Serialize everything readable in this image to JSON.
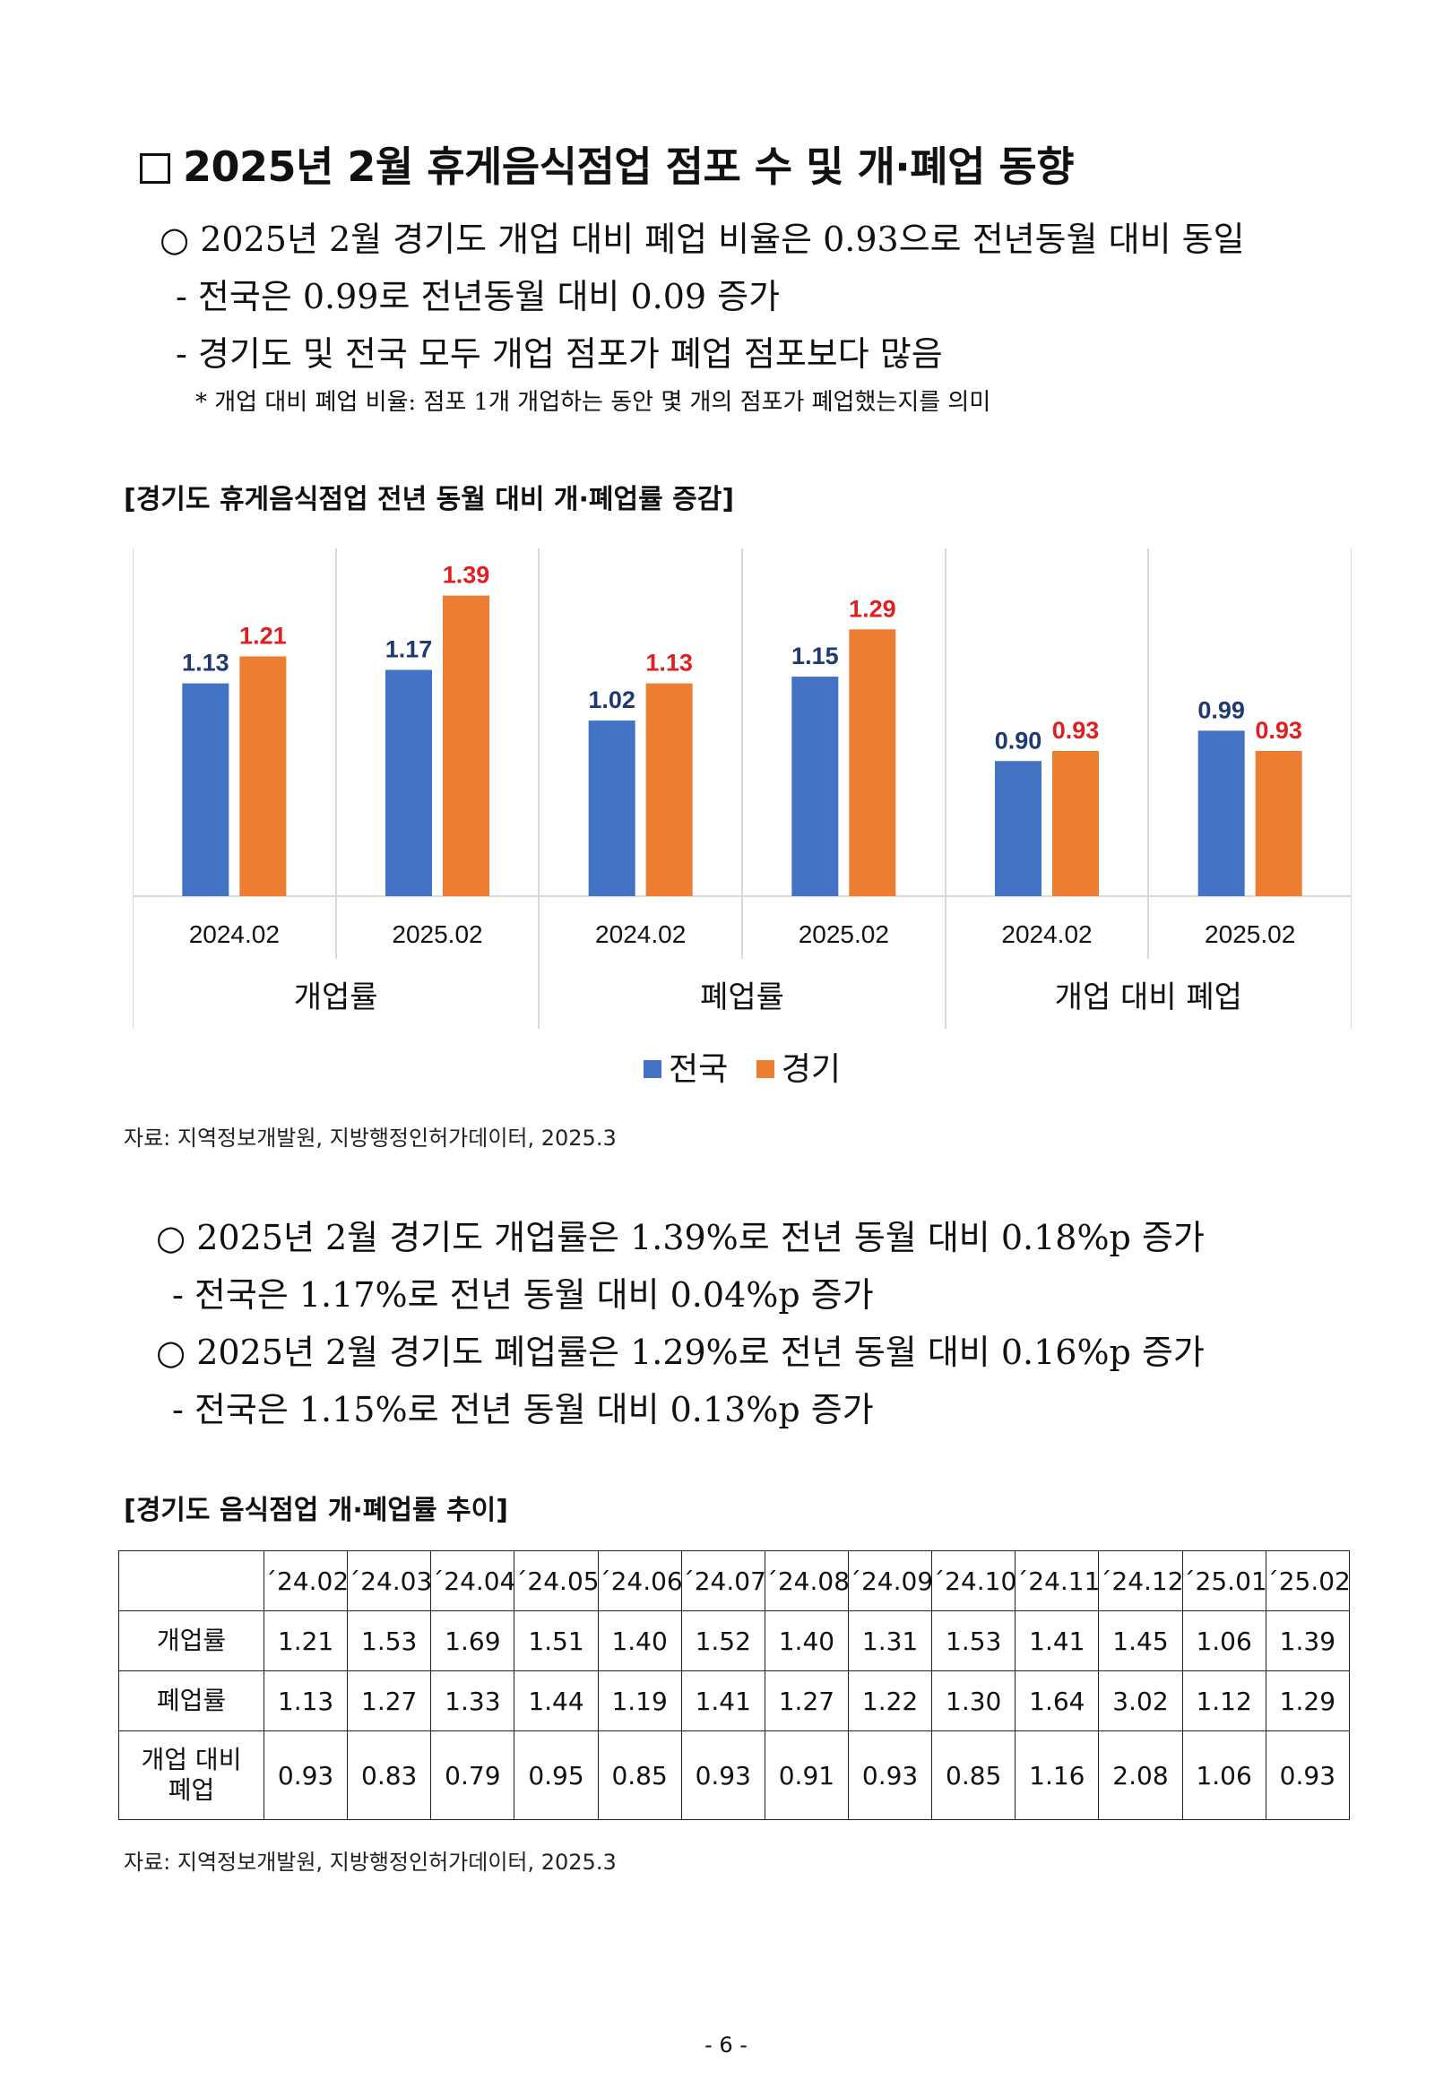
{
  "title": "2025년 2월 휴게음식점업 점포 수 및 개·폐업 동향",
  "summary": {
    "line1": "○ 2025년 2월 경기도 개업 대비 폐업 비율은 0.93으로 전년동월 대비 동일",
    "line2": "- 전국은  0.99로 전년동월 대비 0.09 증가",
    "line3": "- 경기도 및 전국 모두 개업 점포가 폐업 점포보다 많음",
    "note": "* 개업 대비 폐업 비율: 점포 1개 개업하는 동안 몇 개의 점포가 폐업했는지를 의미"
  },
  "chart_section_title": "[경기도 휴게음식점업 전년 동월 대비 개·폐업률 증감]",
  "chart_data": {
    "type": "bar",
    "groups": [
      {
        "label": "개업률",
        "categories": [
          "2024.02",
          "2025.02"
        ]
      },
      {
        "label": "폐업률",
        "categories": [
          "2024.02",
          "2025.02"
        ]
      },
      {
        "label": "개업 대비 폐업",
        "categories": [
          "2024.02",
          "2025.02"
        ]
      }
    ],
    "categories": [
      "2024.02",
      "2025.02",
      "2024.02",
      "2025.02",
      "2024.02",
      "2025.02"
    ],
    "series": [
      {
        "name": "전국",
        "color": "#4472C4",
        "label_color": "#1F3A73",
        "values": [
          1.13,
          1.17,
          1.02,
          1.15,
          0.9,
          0.99
        ]
      },
      {
        "name": "경기",
        "color": "#ED7D31",
        "label_color": "#E02020",
        "values": [
          1.21,
          1.39,
          1.13,
          1.29,
          0.93,
          0.93
        ]
      }
    ],
    "data_labels": [
      [
        "1.13",
        "1.17",
        "1.02",
        "1.15",
        "0.90",
        "0.99"
      ],
      [
        "1.21",
        "1.39",
        "1.13",
        "1.29",
        "0.93",
        "0.93"
      ]
    ],
    "ylim": [
      0.5,
      1.45
    ],
    "grid": false,
    "legend_position": "bottom"
  },
  "chart_source": "자료: 지역정보개발원, 지방행정인허가데이터, 2025.3",
  "analysis": {
    "line1": "○ 2025년 2월 경기도 개업률은 1.39%로 전년 동월 대비 0.18%p 증가",
    "line2": "- 전국은  1.17%로 전년 동월 대비 0.04%p  증가",
    "line3": "○ 2025년 2월 경기도 폐업률은 1.29%로 전년 동월 대비 0.16%p 증가",
    "line4": "- 전국은  1.15%로 전년 동월 대비 0.13%p  증가"
  },
  "table_section_title": "[경기도 음식점업 개·폐업률 추이]",
  "table": {
    "corner": "",
    "columns": [
      "´24.02",
      "´24.03",
      "´24.04",
      "´24.05",
      "´24.06",
      "´24.07",
      "´24.08",
      "´24.09",
      "´24.10",
      "´24.11",
      "´24.12",
      "´25.01",
      "´25.02"
    ],
    "rows": [
      {
        "label": "개업률",
        "values": [
          "1.21",
          "1.53",
          "1.69",
          "1.51",
          "1.40",
          "1.52",
          "1.40",
          "1.31",
          "1.53",
          "1.41",
          "1.45",
          "1.06",
          "1.39"
        ]
      },
      {
        "label": "폐업률",
        "values": [
          "1.13",
          "1.27",
          "1.33",
          "1.44",
          "1.19",
          "1.41",
          "1.27",
          "1.22",
          "1.30",
          "1.64",
          "3.02",
          "1.12",
          "1.29"
        ]
      },
      {
        "label_line1": "개업 대비",
        "label_line2": "폐업",
        "values": [
          "0.93",
          "0.83",
          "0.79",
          "0.95",
          "0.85",
          "0.93",
          "0.91",
          "0.93",
          "0.85",
          "1.16",
          "2.08",
          "1.06",
          "0.93"
        ]
      }
    ]
  },
  "table_source": "자료: 지역정보개발원, 지방행정인허가데이터, 2025.3",
  "page_number": "- 6 -"
}
